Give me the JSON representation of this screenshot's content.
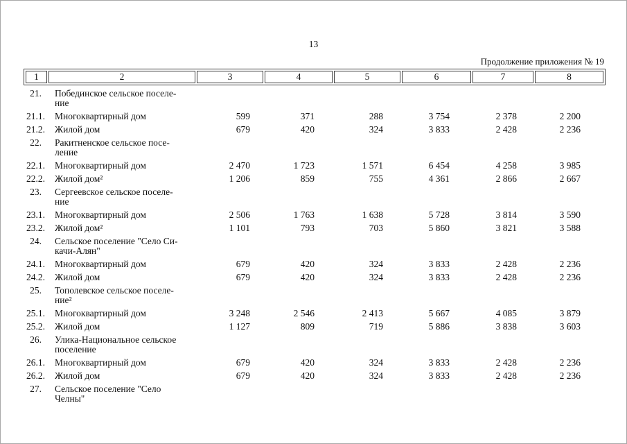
{
  "page": {
    "number": "13",
    "continuation_note": "Продолжение приложения № 19"
  },
  "table": {
    "column_headers": [
      "1",
      "2",
      "3",
      "4",
      "5",
      "6",
      "7",
      "8"
    ],
    "rows": [
      {
        "num": "21.",
        "label": "Побединское сельское поселе-\nние",
        "values": []
      },
      {
        "num": "21.1.",
        "label": "Многоквартирный дом",
        "values": [
          "599",
          "371",
          "288",
          "3 754",
          "2 378",
          "2 200"
        ]
      },
      {
        "num": "21.2.",
        "label": "Жилой дом",
        "values": [
          "679",
          "420",
          "324",
          "3 833",
          "2 428",
          "2 236"
        ]
      },
      {
        "num": "22.",
        "label": "Ракитненское сельское посе-\nление",
        "values": []
      },
      {
        "num": "22.1.",
        "label": "Многоквартирный дом",
        "values": [
          "2 470",
          "1 723",
          "1 571",
          "6 454",
          "4 258",
          "3 985"
        ]
      },
      {
        "num": "22.2.",
        "label": "Жилой дом²",
        "values": [
          "1 206",
          "859",
          "755",
          "4 361",
          "2 866",
          "2 667"
        ]
      },
      {
        "num": "23.",
        "label": "Сергеевское сельское поселе-\nние",
        "values": []
      },
      {
        "num": "23.1.",
        "label": "Многоквартирный дом",
        "values": [
          "2 506",
          "1 763",
          "1 638",
          "5 728",
          "3 814",
          "3 590"
        ]
      },
      {
        "num": "23.2.",
        "label": "Жилой дом²",
        "values": [
          "1 101",
          "793",
          "703",
          "5 860",
          "3 821",
          "3 588"
        ]
      },
      {
        "num": "24.",
        "label": "Сельское поселение \"Село Си-\nкачи-Алян\"",
        "values": []
      },
      {
        "num": "24.1.",
        "label": "Многоквартирный дом",
        "values": [
          "679",
          "420",
          "324",
          "3 833",
          "2 428",
          "2 236"
        ]
      },
      {
        "num": "24.2.",
        "label": "Жилой дом",
        "values": [
          "679",
          "420",
          "324",
          "3 833",
          "2 428",
          "2 236"
        ]
      },
      {
        "num": "25.",
        "label": "Тополевское сельское поселе-\nние²",
        "values": []
      },
      {
        "num": "25.1.",
        "label": "Многоквартирный дом",
        "values": [
          "3 248",
          "2 546",
          "2 413",
          "5 667",
          "4 085",
          "3 879"
        ]
      },
      {
        "num": "25.2.",
        "label": "Жилой дом",
        "values": [
          "1 127",
          "809",
          "719",
          "5 886",
          "3 838",
          "3 603"
        ]
      },
      {
        "num": "26.",
        "label": "Улика-Национальное сельское\nпоселение",
        "values": []
      },
      {
        "num": "26.1.",
        "label": "Многоквартирный дом",
        "values": [
          "679",
          "420",
          "324",
          "3 833",
          "2 428",
          "2 236"
        ]
      },
      {
        "num": "26.2.",
        "label": "Жилой дом",
        "values": [
          "679",
          "420",
          "324",
          "3 833",
          "2 428",
          "2 236"
        ]
      },
      {
        "num": "27.",
        "label": "Сельское поселение \"Село\nЧелны\"",
        "values": []
      }
    ]
  }
}
